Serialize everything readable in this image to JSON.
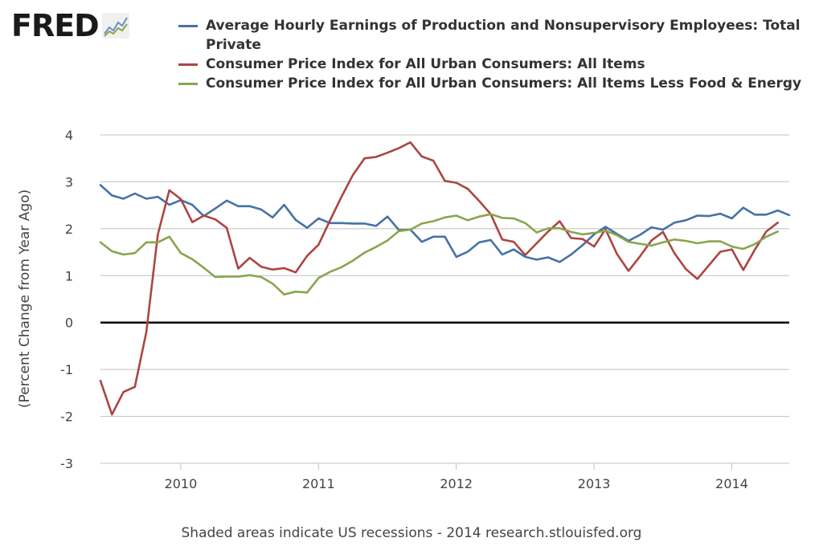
{
  "logo": {
    "text": "FRED",
    "icon": "line-chart-icon"
  },
  "footer": {
    "note": "Shaded areas indicate US recessions - 2014 research.stlouisfed.org"
  },
  "chart_data": {
    "type": "line",
    "title": "",
    "xlabel": "",
    "ylabel": "(Percent Change from Year Ago)",
    "ylim": [
      -3,
      4
    ],
    "xlim": [
      2009.417,
      2014.417
    ],
    "yticks": [
      -3,
      -2,
      -1,
      0,
      1,
      2,
      3,
      4
    ],
    "ytick_labels": [
      "-3",
      "-2",
      "-1",
      "0",
      "1",
      "2",
      "3",
      "4"
    ],
    "xticks": [
      2010,
      2011,
      2012,
      2013,
      2014
    ],
    "xtick_labels": [
      "2010",
      "2011",
      "2012",
      "2013",
      "2014"
    ],
    "grid": true,
    "legend_position": "top",
    "x_start": 2009.417,
    "x_step": 0.08333,
    "series": [
      {
        "name": "Average Hourly Earnings of Production and Nonsupervisory Employees: Total Private",
        "color": "#4572a7",
        "values": [
          2.93,
          2.71,
          2.64,
          2.75,
          2.64,
          2.68,
          2.51,
          2.61,
          2.51,
          2.27,
          2.43,
          2.6,
          2.48,
          2.48,
          2.41,
          2.24,
          2.51,
          2.19,
          2.02,
          2.22,
          2.12,
          2.12,
          2.11,
          2.11,
          2.06,
          2.26,
          1.97,
          1.98,
          1.72,
          1.83,
          1.83,
          1.4,
          1.51,
          1.71,
          1.76,
          1.45,
          1.56,
          1.4,
          1.34,
          1.39,
          1.29,
          1.45,
          1.65,
          1.88,
          2.04,
          1.89,
          1.74,
          1.87,
          2.03,
          1.98,
          2.13,
          2.18,
          2.28,
          2.27,
          2.32,
          2.22,
          2.45,
          2.3,
          2.3,
          2.39,
          2.29
        ]
      },
      {
        "name": "Consumer Price Index for All Urban Consumers: All Items",
        "color": "#aa4643",
        "values": [
          -1.24,
          -1.96,
          -1.48,
          -1.37,
          -0.2,
          1.88,
          2.82,
          2.63,
          2.14,
          2.28,
          2.2,
          2.02,
          1.15,
          1.38,
          1.19,
          1.13,
          1.16,
          1.07,
          1.42,
          1.66,
          2.18,
          2.68,
          3.15,
          3.5,
          3.53,
          3.62,
          3.72,
          3.84,
          3.54,
          3.45,
          3.02,
          2.98,
          2.85,
          2.59,
          2.31,
          1.77,
          1.72,
          1.44,
          1.69,
          1.94,
          2.16,
          1.8,
          1.78,
          1.62,
          1.99,
          1.46,
          1.1,
          1.41,
          1.75,
          1.93,
          1.48,
          1.14,
          0.93,
          1.22,
          1.51,
          1.56,
          1.12,
          1.55,
          1.94,
          2.13
        ]
      },
      {
        "name": "Consumer Price Index for All Urban Consumers: All Items Less Food & Energy",
        "color": "#89a54e",
        "values": [
          1.71,
          1.52,
          1.45,
          1.48,
          1.71,
          1.71,
          1.83,
          1.48,
          1.35,
          1.17,
          0.97,
          0.98,
          0.98,
          1.01,
          0.97,
          0.83,
          0.6,
          0.66,
          0.64,
          0.95,
          1.08,
          1.18,
          1.32,
          1.49,
          1.61,
          1.75,
          1.95,
          1.98,
          2.11,
          2.16,
          2.24,
          2.28,
          2.18,
          2.26,
          2.31,
          2.23,
          2.22,
          2.12,
          1.92,
          2.01,
          2.01,
          1.93,
          1.88,
          1.91,
          1.96,
          1.86,
          1.72,
          1.68,
          1.64,
          1.71,
          1.77,
          1.74,
          1.69,
          1.73,
          1.73,
          1.62,
          1.57,
          1.67,
          1.83,
          1.94
        ]
      }
    ]
  }
}
